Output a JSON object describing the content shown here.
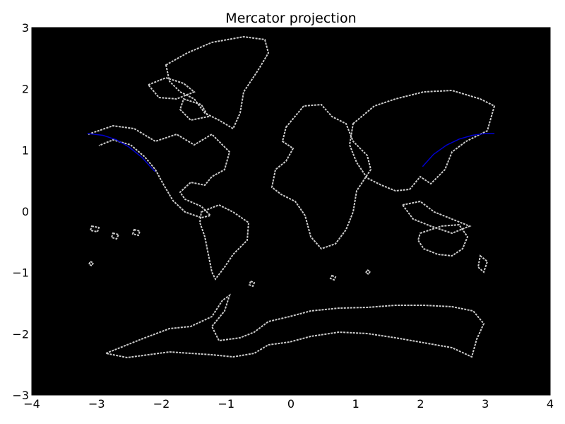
{
  "chart_data": {
    "type": "line",
    "title": "Mercator projection",
    "xlabel": "",
    "ylabel": "",
    "xlim": [
      -4,
      4
    ],
    "ylim": [
      -3,
      3
    ],
    "xticks": [
      -4,
      -3,
      -2,
      -1,
      0,
      1,
      2,
      3,
      4
    ],
    "yticks": [
      -3,
      -2,
      -1,
      0,
      1,
      2,
      3
    ],
    "xtick_labels": [
      "−4",
      "−3",
      "−2",
      "−1",
      "0",
      "1",
      "2",
      "3",
      "4"
    ],
    "ytick_labels": [
      "−3",
      "−2",
      "−1",
      "0",
      "1",
      "2",
      "3"
    ],
    "grid": false,
    "background_color": "#000000",
    "coastline_color": "#cccccc",
    "series": [
      {
        "color": "#0000cc",
        "segments": [
          {
            "x": [
              -3.14,
              -2.9,
              -2.7,
              -2.5,
              -2.3,
              -2.1
            ],
            "y": [
              1.27,
              1.24,
              1.17,
              1.05,
              0.88,
              0.65
            ]
          },
          {
            "x": [
              2.03,
              2.2,
              2.4,
              2.6,
              2.8,
              3.0,
              3.14
            ],
            "y": [
              0.73,
              0.93,
              1.08,
              1.18,
              1.24,
              1.27,
              1.27
            ]
          }
        ]
      }
    ]
  }
}
